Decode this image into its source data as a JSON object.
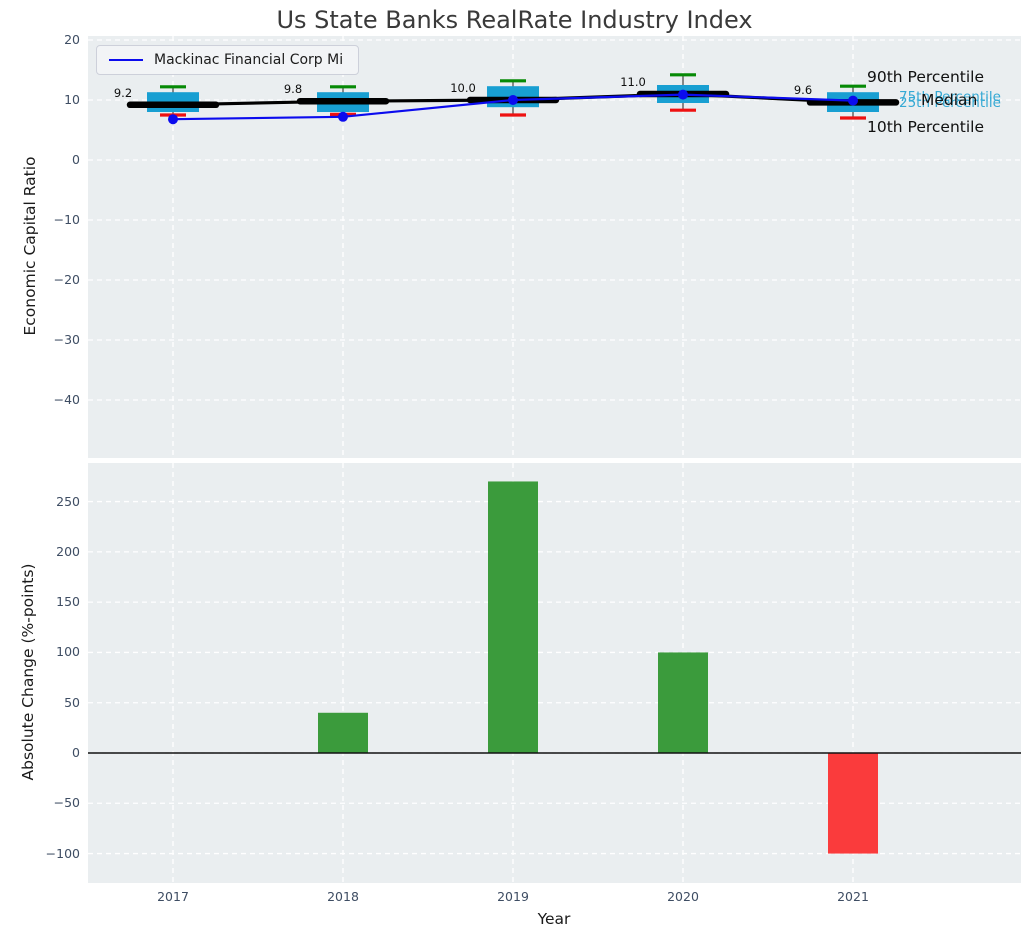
{
  "title": "Us State Banks RealRate Industry Index",
  "legend": {
    "label": "Mackinac Financial Corp Mi"
  },
  "annotations": {
    "p90": "90th Percentile",
    "p75": "75th Percentile",
    "median": "Median",
    "p25": "25th Percentile",
    "p10": "10th Percentile"
  },
  "colors": {
    "axes_bg": "#eaeef0",
    "grid": "#ffffff",
    "tick_text": "#3e4d63",
    "box_fill": "#189fd2",
    "whisker": "#5a5a5a",
    "cap_high_green": "#068a06",
    "cap_low_red": "#ee1111",
    "median_line": "#000000",
    "company_line": "#0b0bee",
    "bar_positive": "#3b9b3c",
    "bar_negative": "#fa3b3c",
    "zero_line": "#111111",
    "annotation_cyan": "#35a9d4"
  },
  "chart_data": [
    {
      "type": "boxplot",
      "title": "",
      "ylabel": "Economic Capital Ratio",
      "categories": [
        "2017",
        "2018",
        "2019",
        "2020",
        "2021"
      ],
      "yticks": [
        20,
        10,
        0,
        -10,
        -20,
        -30,
        -40
      ],
      "ytick_labels": [
        "20",
        "10",
        "0",
        "−10",
        "−20",
        "−30",
        "−40"
      ],
      "ylim": [
        -50,
        21
      ],
      "grid": true,
      "legend_position": "upper left",
      "series": [
        {
          "name": "90th Percentile",
          "values": [
            12.2,
            12.2,
            13.2,
            14.2,
            12.3
          ]
        },
        {
          "name": "75th Percentile",
          "values": [
            11.3,
            11.3,
            12.3,
            12.5,
            11.3
          ]
        },
        {
          "name": "Median",
          "values": [
            9.2,
            9.8,
            10.0,
            11.0,
            9.6
          ]
        },
        {
          "name": "25th Percentile",
          "values": [
            8.0,
            8.0,
            8.8,
            9.5,
            8.0
          ]
        },
        {
          "name": "10th Percentile",
          "values": [
            7.5,
            7.6,
            7.5,
            8.3,
            7.0
          ]
        },
        {
          "name": "Mackinac Financial Corp Mi",
          "values": [
            6.8,
            7.2,
            10.0,
            10.9,
            9.9
          ]
        }
      ],
      "median_labels": [
        "9.2",
        "9.8",
        "10.0",
        "11.0",
        "9.6"
      ]
    },
    {
      "type": "bar",
      "title": "",
      "ylabel": "Absolute Change (%-points)",
      "xlabel": "Year",
      "categories": [
        "2017",
        "2018",
        "2019",
        "2020",
        "2021"
      ],
      "values": [
        0,
        40,
        270,
        100,
        -100
      ],
      "yticks": [
        250,
        200,
        150,
        100,
        50,
        0,
        -50,
        -100
      ],
      "ytick_labels": [
        "250",
        "200",
        "150",
        "100",
        "50",
        "0",
        "−50",
        "−100"
      ],
      "ylim": [
        -130,
        290
      ],
      "grid": true
    }
  ]
}
